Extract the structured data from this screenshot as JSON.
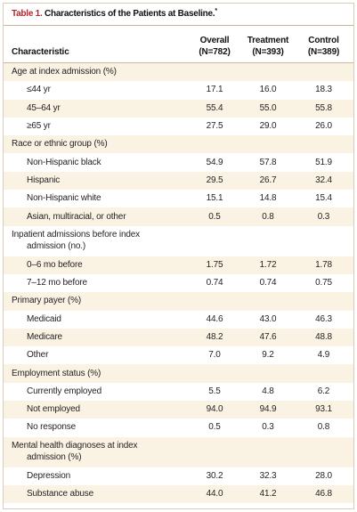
{
  "title": {
    "label": "Table 1.",
    "text": "Characteristics of the Patients at Baseline.",
    "footnote_mark": "*"
  },
  "header": {
    "characteristic": "Characteristic",
    "columns": [
      {
        "name": "Overall",
        "n": "(N=782)"
      },
      {
        "name": "Treatment",
        "n": "(N=393)"
      },
      {
        "name": "Control",
        "n": "(N=389)"
      }
    ]
  },
  "sections": [
    {
      "heading": "Age at index admission (%)",
      "rows": [
        {
          "label": "≤44 yr",
          "overall": "17.1",
          "treatment": "16.0",
          "control": "18.3"
        },
        {
          "label": "45–64 yr",
          "overall": "55.4",
          "treatment": "55.0",
          "control": "55.8"
        },
        {
          "label": "≥65 yr",
          "overall": "27.5",
          "treatment": "29.0",
          "control": "26.0"
        }
      ]
    },
    {
      "heading": "Race or ethnic group (%)",
      "rows": [
        {
          "label": "Non-Hispanic black",
          "overall": "54.9",
          "treatment": "57.8",
          "control": "51.9"
        },
        {
          "label": "Hispanic",
          "overall": "29.5",
          "treatment": "26.7",
          "control": "32.4"
        },
        {
          "label": "Non-Hispanic white",
          "overall": "15.1",
          "treatment": "14.8",
          "control": "15.4"
        },
        {
          "label": "Asian, multiracial, or other",
          "overall": "0.5",
          "treatment": "0.8",
          "control": "0.3"
        }
      ]
    },
    {
      "heading": "Inpatient admissions before index admission (no.)",
      "rows": [
        {
          "label": "0–6 mo before",
          "overall": "1.75",
          "treatment": "1.72",
          "control": "1.78"
        },
        {
          "label": "7–12 mo before",
          "overall": "0.74",
          "treatment": "0.74",
          "control": "0.75"
        }
      ]
    },
    {
      "heading": "Primary payer (%)",
      "rows": [
        {
          "label": "Medicaid",
          "overall": "44.6",
          "treatment": "43.0",
          "control": "46.3"
        },
        {
          "label": "Medicare",
          "overall": "48.2",
          "treatment": "47.6",
          "control": "48.8"
        },
        {
          "label": "Other",
          "overall": "7.0",
          "treatment": "9.2",
          "control": "4.9"
        }
      ]
    },
    {
      "heading": "Employment status (%)",
      "rows": [
        {
          "label": "Currently employed",
          "overall": "5.5",
          "treatment": "4.8",
          "control": "6.2"
        },
        {
          "label": "Not employed",
          "overall": "94.0",
          "treatment": "94.9",
          "control": "93.1"
        },
        {
          "label": "No response",
          "overall": "0.5",
          "treatment": "0.3",
          "control": "0.8"
        }
      ]
    },
    {
      "heading": "Mental health diagnoses at index admission (%)",
      "rows": [
        {
          "label": "Depression",
          "overall": "30.2",
          "treatment": "32.3",
          "control": "28.0"
        },
        {
          "label": "Substance abuse",
          "overall": "44.0",
          "treatment": "41.2",
          "control": "46.8"
        }
      ]
    }
  ],
  "colors": {
    "title_accent": "#B3272D",
    "row_shade": "#FAF3E4",
    "frame_border": "#D8CDB6",
    "rule": "#C6B99D"
  }
}
